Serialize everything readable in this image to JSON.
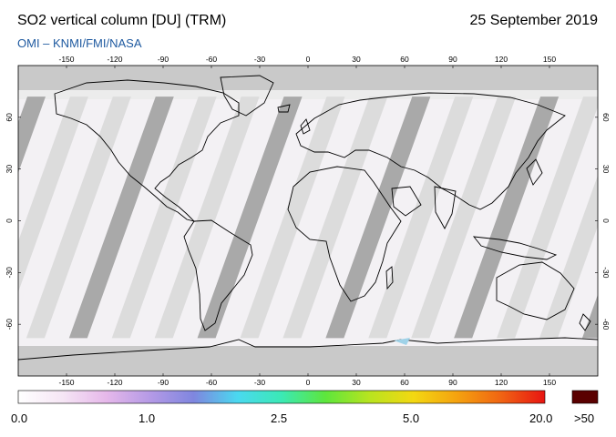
{
  "header": {
    "title": "SO2 vertical column [DU] (TRM)",
    "date": "25 September 2019",
    "credit": "OMI  –  KNMI/FMI/NASA"
  },
  "map": {
    "projection": "equirectangular",
    "lon_ticks": [
      "-150",
      "-120",
      "-90",
      "-60",
      "-30",
      "0",
      "30",
      "60",
      "90",
      "120",
      "150"
    ],
    "lat_ticks": [
      "60",
      "30",
      "0",
      "-30",
      "-60"
    ],
    "colors": {
      "no_data_gray": "#c9c9c9",
      "swath_dark": "#a9a9a9",
      "swath_light": "#dcdcdc",
      "background_data": "#f3f1f4",
      "coastline": "#000000"
    }
  },
  "colorbar": {
    "labels": [
      "0.0",
      "1.0",
      "2.5",
      "5.0",
      "20.0"
    ],
    "overflow_label": ">50",
    "overflow_color": "#5a0000",
    "gradient_stops": [
      "#ffffff",
      "#f6e6f5",
      "#e6b8ea",
      "#b59ae6",
      "#7f86df",
      "#4ad9f0",
      "#3be9b5",
      "#5de63c",
      "#b8e41f",
      "#f3d812",
      "#f5a20f",
      "#f06413",
      "#e81512"
    ]
  }
}
